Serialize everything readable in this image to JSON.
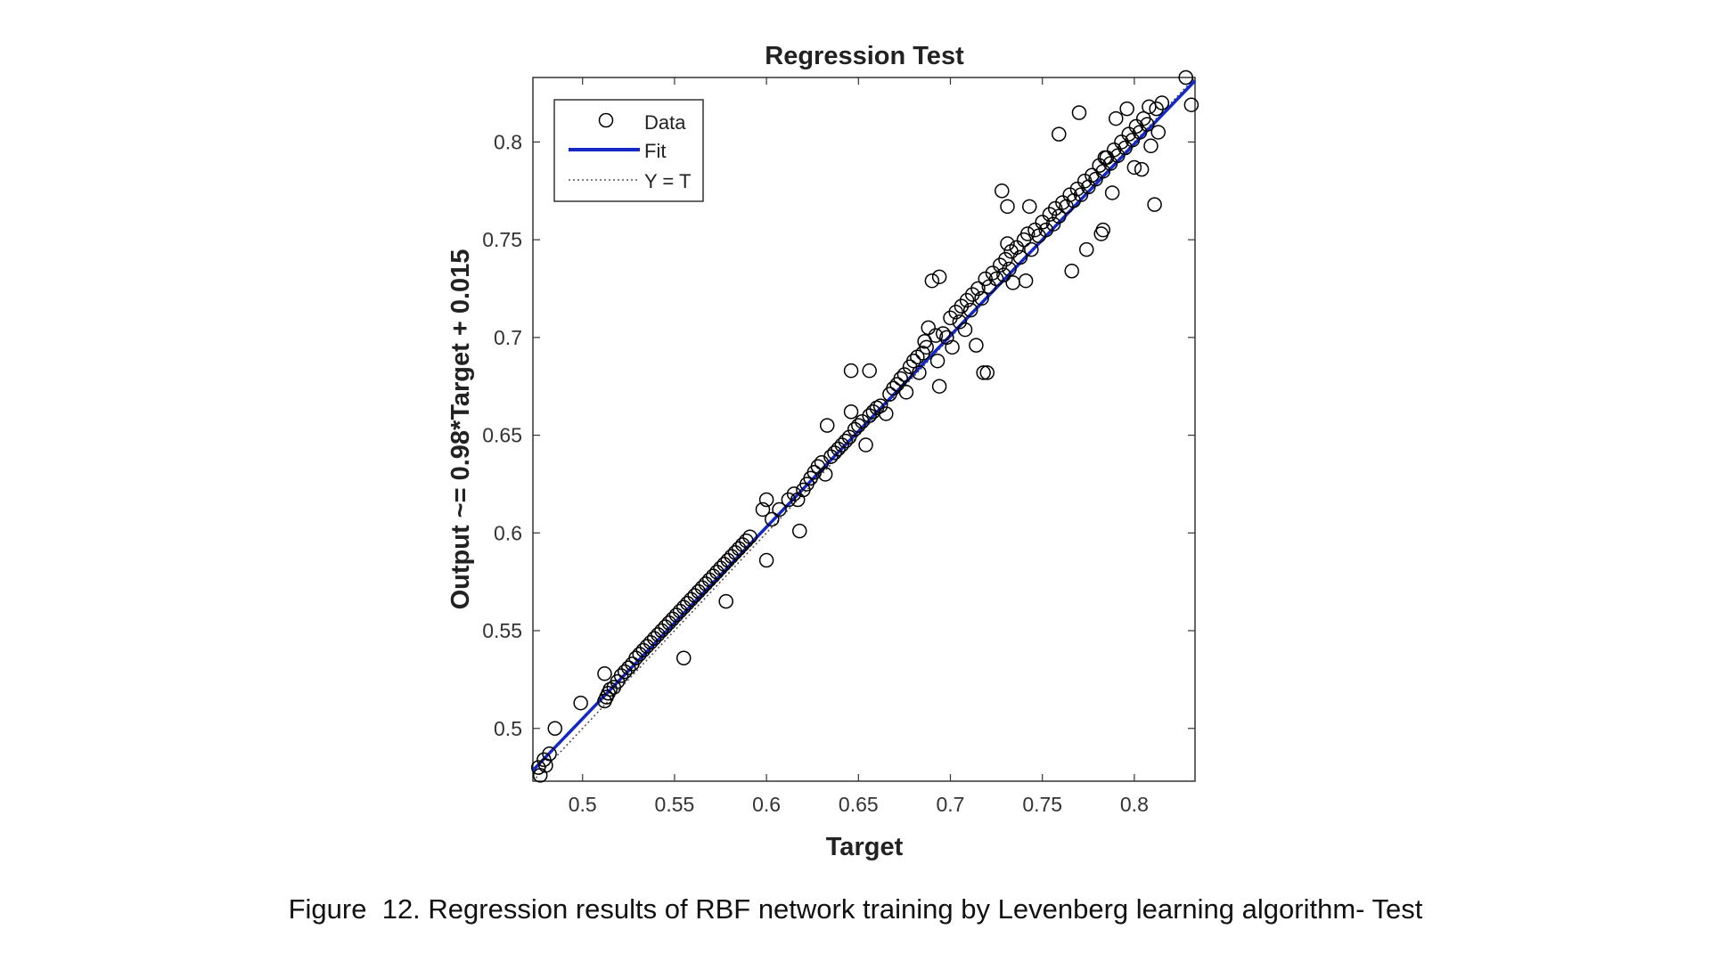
{
  "caption": "Figure  12. Regression results of RBF network training by Levenberg learning algorithm- Test",
  "chart_data": {
    "type": "scatter",
    "title": "Regression Test",
    "xlabel": "Target",
    "ylabel": "Output ~= 0.98*Target + 0.015",
    "xlim": [
      0.473,
      0.833
    ],
    "ylim": [
      0.473,
      0.833
    ],
    "xticks": [
      0.5,
      0.55,
      0.6,
      0.65,
      0.7,
      0.75,
      0.8
    ],
    "yticks": [
      0.5,
      0.55,
      0.6,
      0.65,
      0.7,
      0.75,
      0.8
    ],
    "xtick_labels": [
      "0.5",
      "0.55",
      "0.6",
      "0.65",
      "0.7",
      "0.75",
      "0.8"
    ],
    "ytick_labels": [
      "0.5",
      "0.55",
      "0.6",
      "0.65",
      "0.7",
      "0.75",
      "0.8"
    ],
    "grid": false,
    "legend_position": "top-left",
    "legend": [
      {
        "label": "Data",
        "style": "circle-marker",
        "color": "#000000"
      },
      {
        "label": "Fit",
        "style": "solid-line",
        "color": "#1428c8"
      },
      {
        "label": "Y = T",
        "style": "dotted-line",
        "color": "#555555"
      }
    ],
    "fit": {
      "slope": 0.98,
      "intercept": 0.015,
      "color": "#1428c8"
    },
    "identity_line": {
      "slope": 1,
      "intercept": 0,
      "color": "#555555"
    },
    "marker_color": "#000000",
    "series": [
      {
        "name": "Data",
        "points": [
          [
            0.476,
            0.48
          ],
          [
            0.477,
            0.476
          ],
          [
            0.479,
            0.484
          ],
          [
            0.48,
            0.481
          ],
          [
            0.482,
            0.487
          ],
          [
            0.485,
            0.5
          ],
          [
            0.499,
            0.513
          ],
          [
            0.512,
            0.528
          ],
          [
            0.512,
            0.514
          ],
          [
            0.513,
            0.516
          ],
          [
            0.514,
            0.518
          ],
          [
            0.515,
            0.52
          ],
          [
            0.517,
            0.521
          ],
          [
            0.519,
            0.524
          ],
          [
            0.521,
            0.527
          ],
          [
            0.523,
            0.529
          ],
          [
            0.525,
            0.531
          ],
          [
            0.527,
            0.533
          ],
          [
            0.529,
            0.536
          ],
          [
            0.531,
            0.538
          ],
          [
            0.533,
            0.54
          ],
          [
            0.535,
            0.542
          ],
          [
            0.537,
            0.544
          ],
          [
            0.539,
            0.546
          ],
          [
            0.541,
            0.548
          ],
          [
            0.543,
            0.55
          ],
          [
            0.545,
            0.552
          ],
          [
            0.547,
            0.554
          ],
          [
            0.549,
            0.556
          ],
          [
            0.551,
            0.558
          ],
          [
            0.553,
            0.56
          ],
          [
            0.555,
            0.562
          ],
          [
            0.557,
            0.564
          ],
          [
            0.559,
            0.566
          ],
          [
            0.561,
            0.568
          ],
          [
            0.563,
            0.57
          ],
          [
            0.565,
            0.572
          ],
          [
            0.567,
            0.574
          ],
          [
            0.569,
            0.576
          ],
          [
            0.571,
            0.578
          ],
          [
            0.573,
            0.58
          ],
          [
            0.575,
            0.582
          ],
          [
            0.577,
            0.584
          ],
          [
            0.579,
            0.586
          ],
          [
            0.581,
            0.588
          ],
          [
            0.583,
            0.59
          ],
          [
            0.585,
            0.592
          ],
          [
            0.587,
            0.594
          ],
          [
            0.589,
            0.596
          ],
          [
            0.591,
            0.598
          ],
          [
            0.555,
            0.536
          ],
          [
            0.578,
            0.565
          ],
          [
            0.6,
            0.586
          ],
          [
            0.6,
            0.617
          ],
          [
            0.598,
            0.612
          ],
          [
            0.603,
            0.607
          ],
          [
            0.607,
            0.612
          ],
          [
            0.612,
            0.617
          ],
          [
            0.615,
            0.62
          ],
          [
            0.617,
            0.617
          ],
          [
            0.618,
            0.601
          ],
          [
            0.62,
            0.622
          ],
          [
            0.622,
            0.625
          ],
          [
            0.624,
            0.628
          ],
          [
            0.626,
            0.631
          ],
          [
            0.628,
            0.634
          ],
          [
            0.63,
            0.636
          ],
          [
            0.632,
            0.63
          ],
          [
            0.633,
            0.655
          ],
          [
            0.635,
            0.639
          ],
          [
            0.637,
            0.641
          ],
          [
            0.639,
            0.643
          ],
          [
            0.641,
            0.645
          ],
          [
            0.643,
            0.647
          ],
          [
            0.645,
            0.649
          ],
          [
            0.646,
            0.662
          ],
          [
            0.648,
            0.653
          ],
          [
            0.65,
            0.655
          ],
          [
            0.652,
            0.657
          ],
          [
            0.654,
            0.645
          ],
          [
            0.656,
            0.66
          ],
          [
            0.658,
            0.662
          ],
          [
            0.66,
            0.664
          ],
          [
            0.662,
            0.665
          ],
          [
            0.665,
            0.661
          ],
          [
            0.646,
            0.683
          ],
          [
            0.656,
            0.683
          ],
          [
            0.667,
            0.671
          ],
          [
            0.669,
            0.674
          ],
          [
            0.671,
            0.676
          ],
          [
            0.673,
            0.679
          ],
          [
            0.675,
            0.681
          ],
          [
            0.676,
            0.672
          ],
          [
            0.678,
            0.685
          ],
          [
            0.68,
            0.688
          ],
          [
            0.682,
            0.69
          ],
          [
            0.683,
            0.682
          ],
          [
            0.685,
            0.692
          ],
          [
            0.686,
            0.698
          ],
          [
            0.687,
            0.695
          ],
          [
            0.688,
            0.705
          ],
          [
            0.69,
            0.729
          ],
          [
            0.692,
            0.701
          ],
          [
            0.693,
            0.688
          ],
          [
            0.694,
            0.731
          ],
          [
            0.694,
            0.675
          ],
          [
            0.696,
            0.702
          ],
          [
            0.698,
            0.7
          ],
          [
            0.7,
            0.71
          ],
          [
            0.701,
            0.695
          ],
          [
            0.703,
            0.713
          ],
          [
            0.705,
            0.708
          ],
          [
            0.706,
            0.716
          ],
          [
            0.708,
            0.704
          ],
          [
            0.709,
            0.719
          ],
          [
            0.711,
            0.714
          ],
          [
            0.712,
            0.722
          ],
          [
            0.714,
            0.696
          ],
          [
            0.715,
            0.725
          ],
          [
            0.717,
            0.72
          ],
          [
            0.718,
            0.682
          ],
          [
            0.719,
            0.73
          ],
          [
            0.72,
            0.682
          ],
          [
            0.721,
            0.726
          ],
          [
            0.723,
            0.733
          ],
          [
            0.725,
            0.73
          ],
          [
            0.727,
            0.737
          ],
          [
            0.729,
            0.732
          ],
          [
            0.73,
            0.74
          ],
          [
            0.731,
            0.748
          ],
          [
            0.732,
            0.735
          ],
          [
            0.733,
            0.744
          ],
          [
            0.734,
            0.728
          ],
          [
            0.736,
            0.746
          ],
          [
            0.738,
            0.741
          ],
          [
            0.74,
            0.75
          ],
          [
            0.741,
            0.729
          ],
          [
            0.742,
            0.753
          ],
          [
            0.743,
            0.767
          ],
          [
            0.744,
            0.745
          ],
          [
            0.746,
            0.755
          ],
          [
            0.748,
            0.752
          ],
          [
            0.75,
            0.759
          ],
          [
            0.752,
            0.755
          ],
          [
            0.754,
            0.763
          ],
          [
            0.756,
            0.758
          ],
          [
            0.757,
            0.766
          ],
          [
            0.759,
            0.762
          ],
          [
            0.761,
            0.769
          ],
          [
            0.763,
            0.767
          ],
          [
            0.765,
            0.773
          ],
          [
            0.766,
            0.734
          ],
          [
            0.767,
            0.77
          ],
          [
            0.769,
            0.776
          ],
          [
            0.77,
            0.815
          ],
          [
            0.771,
            0.773
          ],
          [
            0.773,
            0.78
          ],
          [
            0.774,
            0.745
          ],
          [
            0.775,
            0.777
          ],
          [
            0.777,
            0.783
          ],
          [
            0.779,
            0.781
          ],
          [
            0.781,
            0.788
          ],
          [
            0.782,
            0.753
          ],
          [
            0.783,
            0.785
          ],
          [
            0.785,
            0.792
          ],
          [
            0.787,
            0.789
          ],
          [
            0.788,
            0.774
          ],
          [
            0.789,
            0.796
          ],
          [
            0.791,
            0.793
          ],
          [
            0.793,
            0.8
          ],
          [
            0.795,
            0.797
          ],
          [
            0.797,
            0.804
          ],
          [
            0.799,
            0.801
          ],
          [
            0.8,
            0.787
          ],
          [
            0.801,
            0.808
          ],
          [
            0.803,
            0.805
          ],
          [
            0.804,
            0.786
          ],
          [
            0.805,
            0.812
          ],
          [
            0.807,
            0.809
          ],
          [
            0.808,
            0.818
          ],
          [
            0.809,
            0.798
          ],
          [
            0.811,
            0.768
          ],
          [
            0.812,
            0.817
          ],
          [
            0.813,
            0.805
          ],
          [
            0.815,
            0.82
          ],
          [
            0.828,
            0.833
          ],
          [
            0.831,
            0.819
          ],
          [
            0.759,
            0.804
          ],
          [
            0.731,
            0.767
          ],
          [
            0.728,
            0.775
          ],
          [
            0.784,
            0.792
          ],
          [
            0.783,
            0.755
          ],
          [
            0.79,
            0.812
          ],
          [
            0.796,
            0.817
          ]
        ]
      }
    ]
  }
}
